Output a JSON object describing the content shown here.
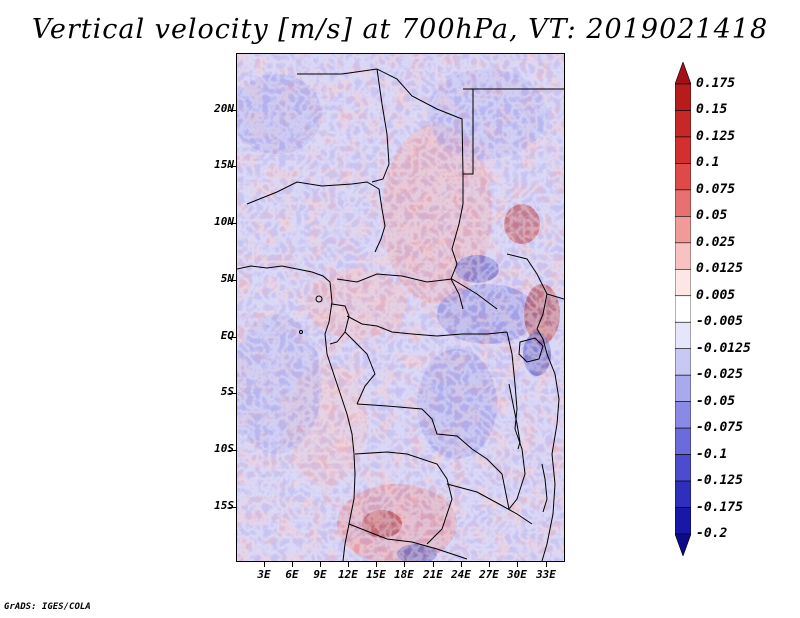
{
  "title": "Vertical velocity [m/s] at 700hPa, VT: 2019021418",
  "footer": "GrADS: IGES/COLA",
  "map": {
    "lat_labels": [
      "20N",
      "15N",
      "10N",
      "5N",
      "EQ",
      "5S",
      "10S",
      "15S"
    ],
    "lon_labels": [
      "3E",
      "6E",
      "9E",
      "12E",
      "15E",
      "18E",
      "21E",
      "24E",
      "27E",
      "30E",
      "33E"
    ],
    "lat_range": [
      -20,
      25
    ],
    "lon_range": [
      0,
      35
    ]
  },
  "colorbar": {
    "labels": [
      "0.175",
      "0.15",
      "0.125",
      "0.1",
      "0.075",
      "0.05",
      "0.025",
      "0.0125",
      "0.005",
      "-0.005",
      "-0.0125",
      "-0.025",
      "-0.05",
      "-0.075",
      "-0.1",
      "-0.125",
      "-0.175",
      "-0.2"
    ],
    "colors": [
      "#a50f15",
      "#b71c1c",
      "#c62828",
      "#d32f2f",
      "#de4a4a",
      "#e87070",
      "#f19a9a",
      "#f8c2c2",
      "#fde6e6",
      "#ffffff",
      "#e6e6fb",
      "#c8c8f4",
      "#a9a9ee",
      "#8a8ae6",
      "#6b6bdb",
      "#4c4cce",
      "#2f2fbe",
      "#1717a8",
      "#0c0c8a"
    ]
  }
}
